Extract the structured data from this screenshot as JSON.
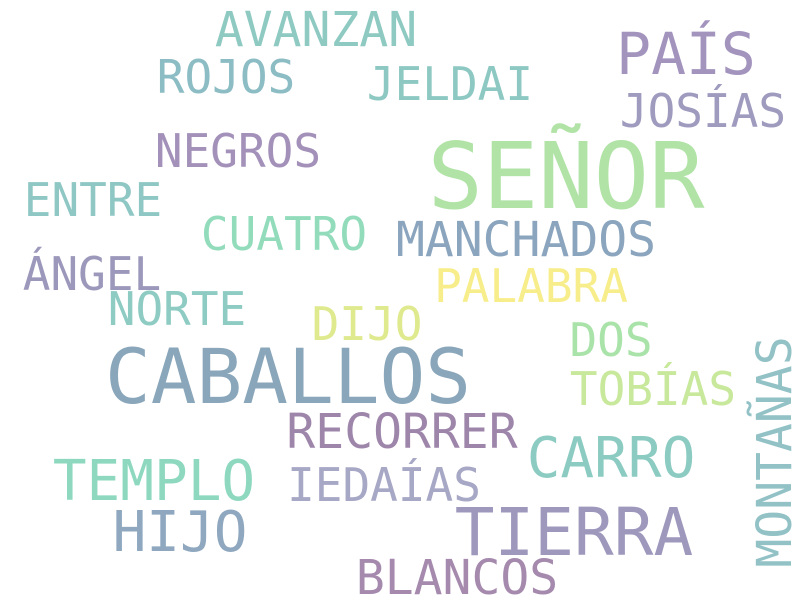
{
  "words": [
    {
      "text": "SEÑOR",
      "color": "#b1e3a7"
    },
    {
      "text": "CABALLOS",
      "color": "#8aa6ba"
    },
    {
      "text": "TIERRA",
      "color": "#9f98bd"
    },
    {
      "text": "PAÍS",
      "color": "#a394be"
    },
    {
      "text": "CARRO",
      "color": "#8ccbc2"
    },
    {
      "text": "TEMPLO",
      "color": "#8dd8be"
    },
    {
      "text": "HIJO",
      "color": "#8fa8bf"
    },
    {
      "text": "AVANZAN",
      "color": "#8ecac1"
    },
    {
      "text": "MANCHADOS",
      "color": "#8aa5bd"
    },
    {
      "text": "RECORRER",
      "color": "#9e86ab"
    },
    {
      "text": "BLANCOS",
      "color": "#a58aae"
    },
    {
      "text": "MONTAÑAS",
      "color": "#92c2c6"
    },
    {
      "text": "PALABRA",
      "color": "#f7ed8b"
    },
    {
      "text": "ROJOS",
      "color": "#8cbcc4"
    },
    {
      "text": "JELDAI",
      "color": "#8dc8c2"
    },
    {
      "text": "JOSÍAS",
      "color": "#9f9bbf"
    },
    {
      "text": "NEGROS",
      "color": "#a391ba"
    },
    {
      "text": "ENTRE",
      "color": "#8fc7c4"
    },
    {
      "text": "CUATRO",
      "color": "#92dcbc"
    },
    {
      "text": "ÁNGEL",
      "color": "#9c98bb"
    },
    {
      "text": "NORTE",
      "color": "#8ecbc3"
    },
    {
      "text": "DIJO",
      "color": "#dfe98d"
    },
    {
      "text": "DOS",
      "color": "#a9e3a9"
    },
    {
      "text": "TOBÍAS",
      "color": "#c8e89c"
    },
    {
      "text": "IEDAÍAS",
      "color": "#a7a7c6"
    }
  ]
}
